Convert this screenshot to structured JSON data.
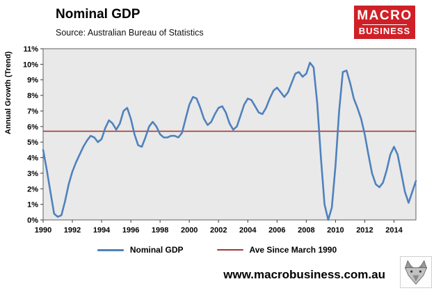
{
  "header": {
    "title": "Nominal GDP",
    "source": "Source: Australian Bureau of Statistics",
    "logo": {
      "line1": "MACRO",
      "line2": "BUSINESS",
      "bg_color": "#d02027",
      "text_color": "#ffffff"
    }
  },
  "chart_data": {
    "type": "line",
    "title": "Nominal GDP",
    "xlabel": "",
    "ylabel": "Annual Growth (Trend)",
    "ylim": [
      0,
      11
    ],
    "xlim": [
      1990,
      2015.5
    ],
    "y_ticks": [
      "0%",
      "1%",
      "2%",
      "3%",
      "4%",
      "5%",
      "6%",
      "7%",
      "8%",
      "9%",
      "10%",
      "11%"
    ],
    "x_ticks": [
      1990,
      1992,
      1994,
      1996,
      1998,
      2000,
      2002,
      2004,
      2006,
      2008,
      2010,
      2012,
      2014
    ],
    "grid": false,
    "plot_bg": "#e9e9e9",
    "legend_position": "bottom",
    "series": [
      {
        "name": "Nominal GDP",
        "type": "line",
        "color": "#4f81bd",
        "x_start": 1990.0,
        "x_step_years": 0.25,
        "y": [
          4.5,
          3.2,
          1.8,
          0.4,
          0.2,
          0.3,
          1.2,
          2.3,
          3.1,
          3.7,
          4.2,
          4.7,
          5.1,
          5.4,
          5.3,
          5.0,
          5.2,
          5.9,
          6.4,
          6.2,
          5.8,
          6.2,
          7.0,
          7.2,
          6.5,
          5.5,
          4.8,
          4.7,
          5.3,
          6.0,
          6.3,
          6.0,
          5.5,
          5.3,
          5.3,
          5.4,
          5.4,
          5.3,
          5.6,
          6.5,
          7.4,
          7.9,
          7.8,
          7.2,
          6.5,
          6.1,
          6.3,
          6.8,
          7.2,
          7.3,
          6.9,
          6.2,
          5.8,
          6.0,
          6.7,
          7.4,
          7.8,
          7.7,
          7.3,
          6.9,
          6.8,
          7.2,
          7.8,
          8.3,
          8.5,
          8.2,
          7.9,
          8.2,
          8.8,
          9.4,
          9.5,
          9.2,
          9.4,
          10.1,
          9.8,
          7.5,
          4.0,
          1.0,
          0.0,
          0.8,
          3.5,
          7.0,
          9.5,
          9.6,
          8.8,
          7.8,
          7.2,
          6.5,
          5.5,
          4.2,
          3.0,
          2.3,
          2.1,
          2.4,
          3.2,
          4.2,
          4.7,
          4.2,
          3.0,
          1.8,
          1.1,
          1.8,
          2.5
        ]
      },
      {
        "name": "Ave Since March 1990",
        "type": "hline",
        "color": "#9e3a38",
        "value": 5.7
      }
    ]
  },
  "footer": {
    "url": "www.macrobusiness.com.au",
    "wolf_logo": "wolf-head-emblem"
  }
}
